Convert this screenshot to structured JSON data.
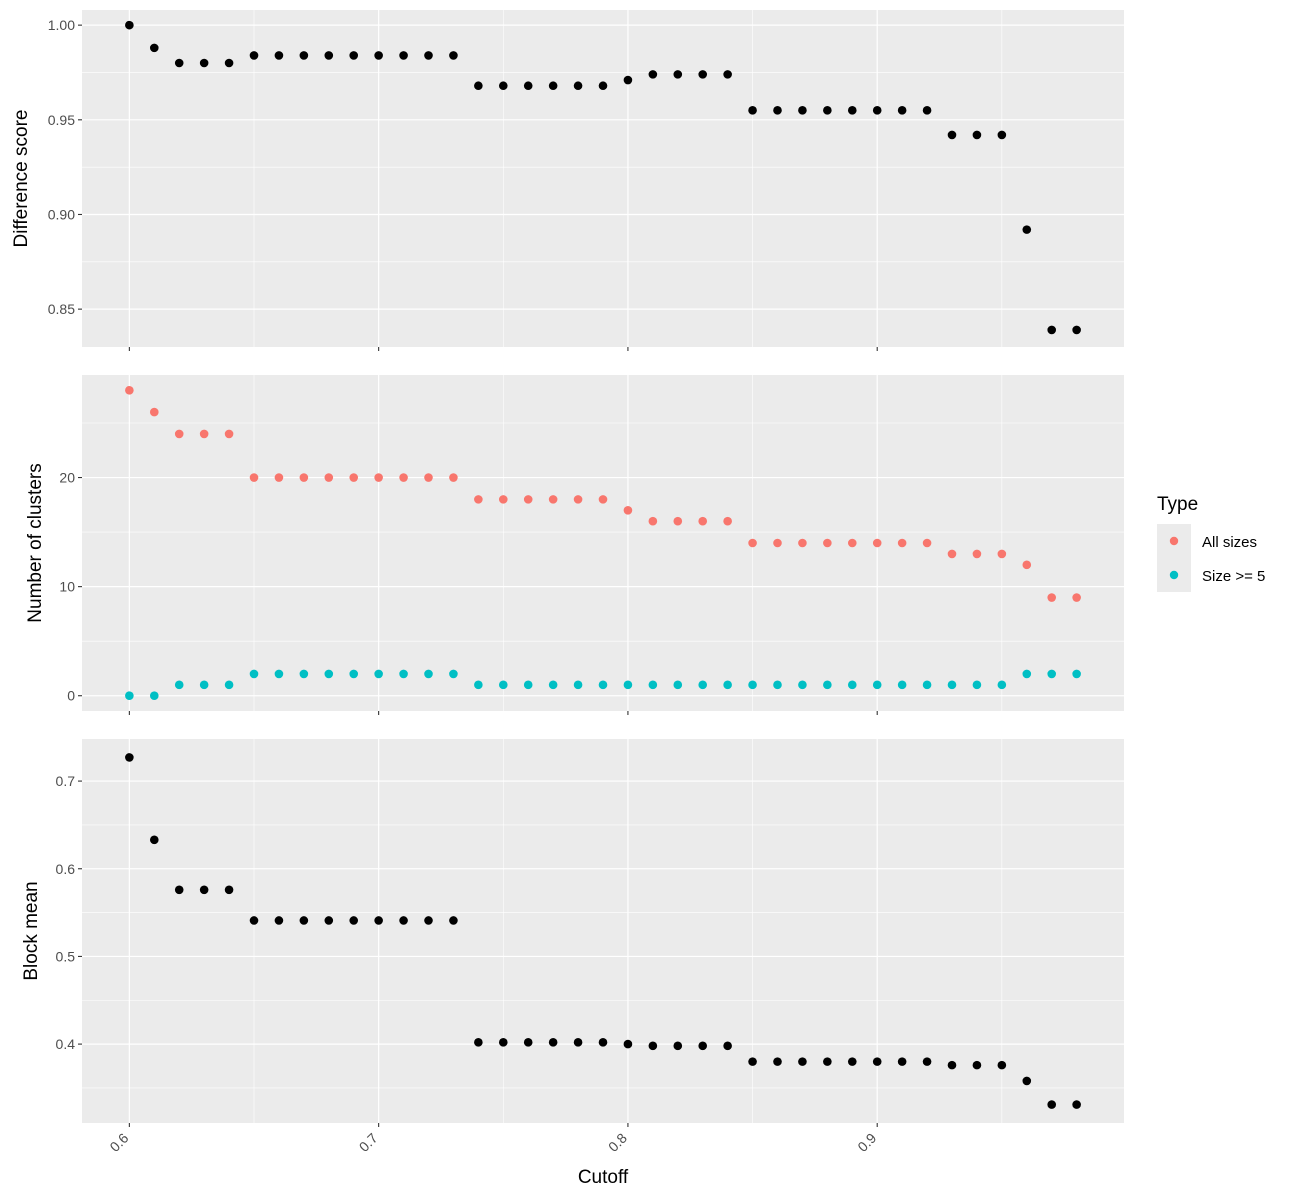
{
  "chart_data": [
    {
      "type": "scatter",
      "xlabel": "",
      "ylabel": "Difference score",
      "xlim": [
        0.581,
        0.999
      ],
      "ylim": [
        0.83,
        1.008
      ],
      "y_ticks": [
        "0.85",
        "0.90",
        "0.95",
        "1.00"
      ],
      "grid": true,
      "series": [
        {
          "color": "#000000",
          "x": [
            0.6,
            0.61,
            0.62,
            0.63,
            0.64,
            0.65,
            0.66,
            0.67,
            0.68,
            0.69,
            0.7,
            0.71,
            0.72,
            0.73,
            0.74,
            0.75,
            0.76,
            0.77,
            0.78,
            0.79,
            0.8,
            0.81,
            0.82,
            0.83,
            0.84,
            0.85,
            0.86,
            0.87,
            0.88,
            0.89,
            0.9,
            0.91,
            0.92,
            0.93,
            0.94,
            0.95,
            0.96,
            0.97,
            0.98
          ],
          "y": [
            1.0,
            0.988,
            0.98,
            0.98,
            0.98,
            0.984,
            0.984,
            0.984,
            0.984,
            0.984,
            0.984,
            0.984,
            0.984,
            0.984,
            0.968,
            0.968,
            0.968,
            0.968,
            0.968,
            0.968,
            0.971,
            0.974,
            0.974,
            0.974,
            0.974,
            0.955,
            0.955,
            0.955,
            0.955,
            0.955,
            0.955,
            0.955,
            0.955,
            0.942,
            0.942,
            0.942,
            0.892,
            0.839,
            0.839
          ]
        }
      ]
    },
    {
      "type": "scatter",
      "xlabel": "",
      "ylabel": "Number of clusters",
      "xlim": [
        0.581,
        0.999
      ],
      "ylim": [
        -1.4,
        29.4
      ],
      "y_ticks": [
        "0",
        "10",
        "20"
      ],
      "grid": true,
      "legend": {
        "title": "Type",
        "position": "right",
        "entries": [
          "All sizes",
          "Size >= 5"
        ]
      },
      "series": [
        {
          "name": "All sizes",
          "color": "#F8766D",
          "x": [
            0.6,
            0.61,
            0.62,
            0.63,
            0.64,
            0.65,
            0.66,
            0.67,
            0.68,
            0.69,
            0.7,
            0.71,
            0.72,
            0.73,
            0.74,
            0.75,
            0.76,
            0.77,
            0.78,
            0.79,
            0.8,
            0.81,
            0.82,
            0.83,
            0.84,
            0.85,
            0.86,
            0.87,
            0.88,
            0.89,
            0.9,
            0.91,
            0.92,
            0.93,
            0.94,
            0.95,
            0.96,
            0.97,
            0.98
          ],
          "y": [
            28,
            26,
            24,
            24,
            24,
            20,
            20,
            20,
            20,
            20,
            20,
            20,
            20,
            20,
            18,
            18,
            18,
            18,
            18,
            18,
            17,
            16,
            16,
            16,
            16,
            14,
            14,
            14,
            14,
            14,
            14,
            14,
            14,
            13,
            13,
            13,
            12,
            9,
            9
          ]
        },
        {
          "name": "Size >= 5",
          "color": "#00BFC4",
          "x": [
            0.6,
            0.61,
            0.62,
            0.63,
            0.64,
            0.65,
            0.66,
            0.67,
            0.68,
            0.69,
            0.7,
            0.71,
            0.72,
            0.73,
            0.74,
            0.75,
            0.76,
            0.77,
            0.78,
            0.79,
            0.8,
            0.81,
            0.82,
            0.83,
            0.84,
            0.85,
            0.86,
            0.87,
            0.88,
            0.89,
            0.9,
            0.91,
            0.92,
            0.93,
            0.94,
            0.95,
            0.96,
            0.97,
            0.98
          ],
          "y": [
            0,
            0,
            1,
            1,
            1,
            2,
            2,
            2,
            2,
            2,
            2,
            2,
            2,
            2,
            1,
            1,
            1,
            1,
            1,
            1,
            1,
            1,
            1,
            1,
            1,
            1,
            1,
            1,
            1,
            1,
            1,
            1,
            1,
            1,
            1,
            1,
            2,
            2,
            2
          ]
        }
      ]
    },
    {
      "type": "scatter",
      "xlabel": "Cutoff",
      "ylabel": "Block mean",
      "xlim": [
        0.581,
        0.999
      ],
      "ylim": [
        0.31,
        0.748
      ],
      "y_ticks": [
        "0.4",
        "0.5",
        "0.6",
        "0.7"
      ],
      "x_ticks": [
        "0.6",
        "0.7",
        "0.8",
        "0.9"
      ],
      "grid": true,
      "series": [
        {
          "color": "#000000",
          "x": [
            0.6,
            0.61,
            0.62,
            0.63,
            0.64,
            0.65,
            0.66,
            0.67,
            0.68,
            0.69,
            0.7,
            0.71,
            0.72,
            0.73,
            0.74,
            0.75,
            0.76,
            0.77,
            0.78,
            0.79,
            0.8,
            0.81,
            0.82,
            0.83,
            0.84,
            0.85,
            0.86,
            0.87,
            0.88,
            0.89,
            0.9,
            0.91,
            0.92,
            0.93,
            0.94,
            0.95,
            0.96,
            0.97,
            0.98
          ],
          "y": [
            0.727,
            0.633,
            0.576,
            0.576,
            0.576,
            0.541,
            0.541,
            0.541,
            0.541,
            0.541,
            0.541,
            0.541,
            0.541,
            0.541,
            0.402,
            0.402,
            0.402,
            0.402,
            0.402,
            0.402,
            0.4,
            0.398,
            0.398,
            0.398,
            0.398,
            0.38,
            0.38,
            0.38,
            0.38,
            0.38,
            0.38,
            0.38,
            0.38,
            0.376,
            0.376,
            0.376,
            0.358,
            0.331,
            0.331
          ]
        }
      ]
    }
  ]
}
